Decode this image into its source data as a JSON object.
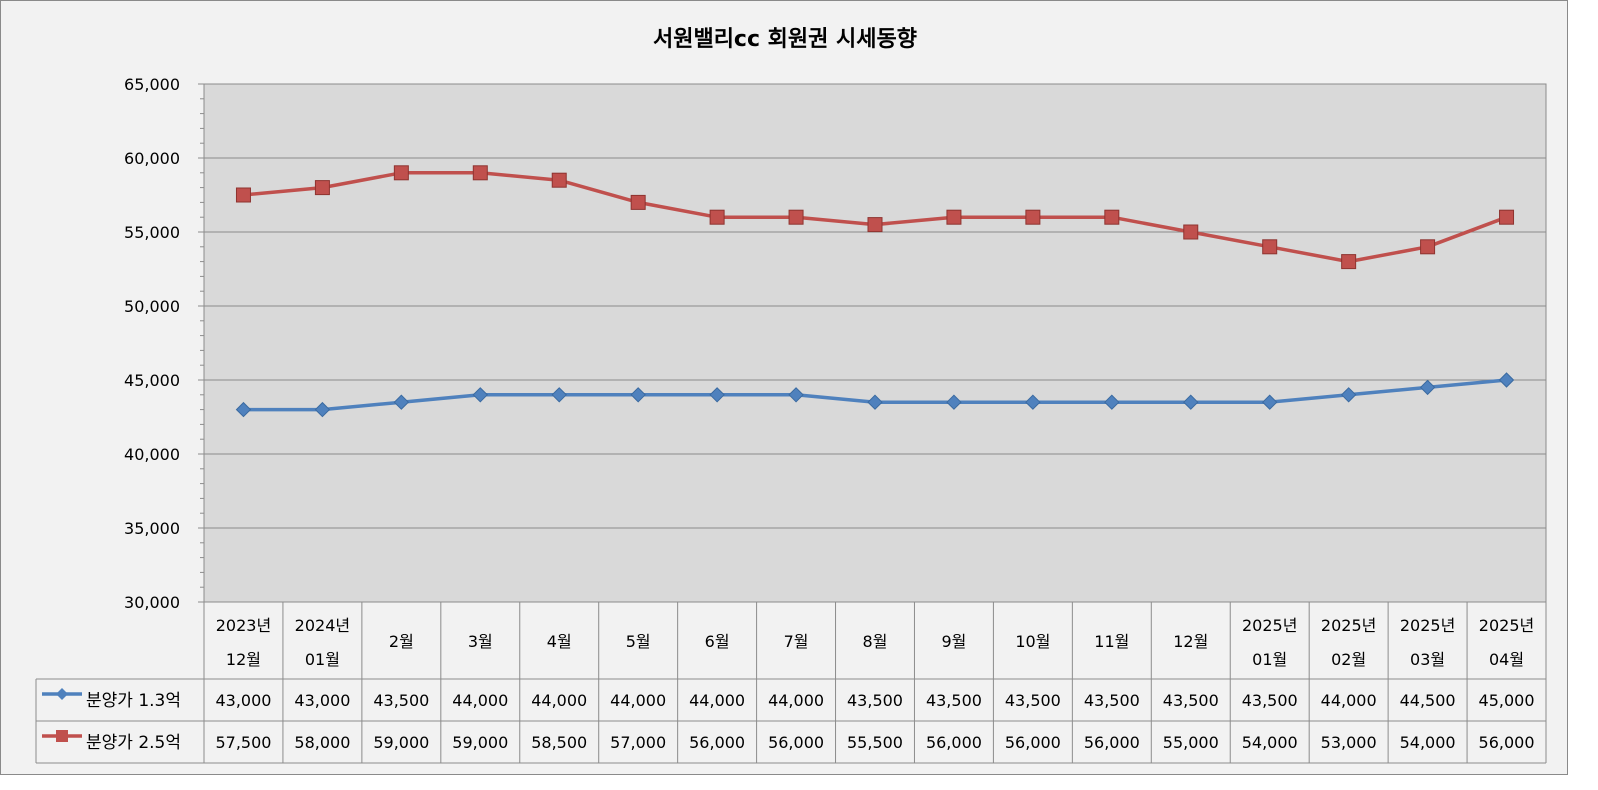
{
  "chart_data": {
    "type": "line",
    "title": "서원밸리cc 회원권 시세동향",
    "xlabel": "",
    "ylabel": "",
    "ylim": [
      30000,
      65000
    ],
    "y_major_step": 5000,
    "y_minor_step": 1000,
    "y_tick_labels": [
      "30,000",
      "35,000",
      "40,000",
      "45,000",
      "50,000",
      "55,000",
      "60,000",
      "65,000"
    ],
    "grid": true,
    "legend_position": "data-table",
    "categories": [
      [
        "2023년",
        "12월"
      ],
      [
        "2024년",
        "01월"
      ],
      [
        "2월"
      ],
      [
        "3월"
      ],
      [
        "4월"
      ],
      [
        "5월"
      ],
      [
        "6월"
      ],
      [
        "7월"
      ],
      [
        "8월"
      ],
      [
        "9월"
      ],
      [
        "10월"
      ],
      [
        "11월"
      ],
      [
        "12월"
      ],
      [
        "2025년",
        "01월"
      ],
      [
        "2025년",
        "02월"
      ],
      [
        "2025년",
        "03월"
      ],
      [
        "2025년",
        "04월"
      ]
    ],
    "series": [
      {
        "name": "분양가 1.3억",
        "color": "#4f81bd",
        "marker": "diamond",
        "values": [
          43000,
          43000,
          43500,
          44000,
          44000,
          44000,
          44000,
          44000,
          43500,
          43500,
          43500,
          43500,
          43500,
          43500,
          44000,
          44500,
          45000
        ]
      },
      {
        "name": "분양가 2.5억",
        "color": "#c0504d",
        "marker": "square",
        "values": [
          57500,
          58000,
          59000,
          59000,
          58500,
          57000,
          56000,
          56000,
          55500,
          56000,
          56000,
          56000,
          55000,
          54000,
          53000,
          54000,
          56000
        ]
      }
    ],
    "plot_background": "#d9d9d9",
    "chart_background": "#f2f2f2"
  }
}
